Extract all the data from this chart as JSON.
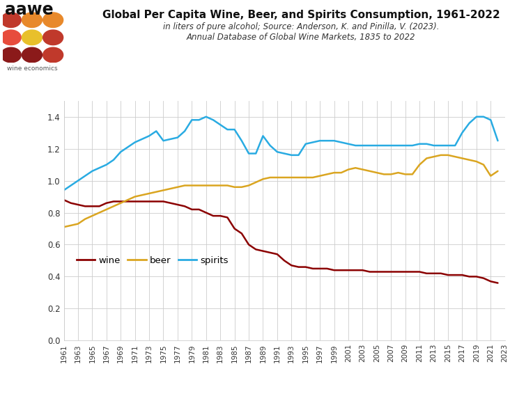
{
  "title": "Global Per Capita Wine, Beer, and Spirits Consumption, 1961-2022",
  "subtitle1": "in liters of pure alcohol; Source: Anderson, K. and Pinilla, V. (2023).",
  "subtitle2": "Annual Database of Global Wine Markets, 1835 to 2022",
  "years": [
    1961,
    1962,
    1963,
    1964,
    1965,
    1966,
    1967,
    1968,
    1969,
    1970,
    1971,
    1972,
    1973,
    1974,
    1975,
    1976,
    1977,
    1978,
    1979,
    1980,
    1981,
    1982,
    1983,
    1984,
    1985,
    1986,
    1987,
    1988,
    1989,
    1990,
    1991,
    1992,
    1993,
    1994,
    1995,
    1996,
    1997,
    1998,
    1999,
    2000,
    2001,
    2002,
    2003,
    2004,
    2005,
    2006,
    2007,
    2008,
    2009,
    2010,
    2011,
    2012,
    2013,
    2014,
    2015,
    2016,
    2017,
    2018,
    2019,
    2020,
    2021,
    2022
  ],
  "wine": [
    0.88,
    0.86,
    0.85,
    0.84,
    0.84,
    0.84,
    0.86,
    0.87,
    0.87,
    0.87,
    0.87,
    0.87,
    0.87,
    0.87,
    0.87,
    0.86,
    0.85,
    0.84,
    0.82,
    0.82,
    0.8,
    0.78,
    0.78,
    0.77,
    0.7,
    0.67,
    0.6,
    0.57,
    0.56,
    0.55,
    0.54,
    0.5,
    0.47,
    0.46,
    0.46,
    0.45,
    0.45,
    0.45,
    0.44,
    0.44,
    0.44,
    0.44,
    0.44,
    0.43,
    0.43,
    0.43,
    0.43,
    0.43,
    0.43,
    0.43,
    0.43,
    0.42,
    0.42,
    0.42,
    0.41,
    0.41,
    0.41,
    0.4,
    0.4,
    0.39,
    0.37,
    0.36
  ],
  "beer": [
    0.71,
    0.72,
    0.73,
    0.76,
    0.78,
    0.8,
    0.82,
    0.84,
    0.86,
    0.88,
    0.9,
    0.91,
    0.92,
    0.93,
    0.94,
    0.95,
    0.96,
    0.97,
    0.97,
    0.97,
    0.97,
    0.97,
    0.97,
    0.97,
    0.96,
    0.96,
    0.97,
    0.99,
    1.01,
    1.02,
    1.02,
    1.02,
    1.02,
    1.02,
    1.02,
    1.02,
    1.03,
    1.04,
    1.05,
    1.05,
    1.07,
    1.08,
    1.07,
    1.06,
    1.05,
    1.04,
    1.04,
    1.05,
    1.04,
    1.04,
    1.1,
    1.14,
    1.15,
    1.16,
    1.16,
    1.15,
    1.14,
    1.13,
    1.12,
    1.1,
    1.03,
    1.06
  ],
  "spirits": [
    0.94,
    0.97,
    1.0,
    1.03,
    1.06,
    1.08,
    1.1,
    1.13,
    1.18,
    1.21,
    1.24,
    1.26,
    1.28,
    1.31,
    1.25,
    1.26,
    1.27,
    1.31,
    1.38,
    1.38,
    1.4,
    1.38,
    1.35,
    1.32,
    1.32,
    1.25,
    1.17,
    1.17,
    1.28,
    1.22,
    1.18,
    1.17,
    1.16,
    1.16,
    1.23,
    1.24,
    1.25,
    1.25,
    1.25,
    1.24,
    1.23,
    1.22,
    1.22,
    1.22,
    1.22,
    1.22,
    1.22,
    1.22,
    1.22,
    1.22,
    1.23,
    1.23,
    1.22,
    1.22,
    1.22,
    1.22,
    1.3,
    1.36,
    1.4,
    1.4,
    1.38,
    1.25
  ],
  "wine_color": "#8B0000",
  "beer_color": "#DAA520",
  "spirits_color": "#29ABE2",
  "bg_color": "#FFFFFF",
  "grid_color": "#CCCCCC",
  "ylim": [
    0.0,
    1.5
  ],
  "yticks": [
    0.0,
    0.2,
    0.4,
    0.6,
    0.8,
    1.0,
    1.2,
    1.4
  ],
  "logo_circles": [
    [
      "#C0392B",
      "#E8892B",
      "#E8892B"
    ],
    [
      "#E74C3C",
      "#E8C02B",
      "#C0392B"
    ],
    [
      "#8B1A1A",
      "#8B1A1A",
      "#C0392B"
    ]
  ]
}
